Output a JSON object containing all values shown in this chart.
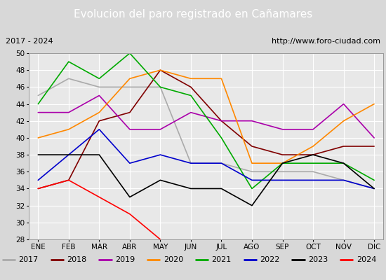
{
  "title": "Evolucion del paro registrado en Cañamares",
  "subtitle_left": "2017 - 2024",
  "subtitle_right": "http://www.foro-ciudad.com",
  "months": [
    "ENE",
    "FEB",
    "MAR",
    "ABR",
    "MAY",
    "JUN",
    "JUL",
    "AGO",
    "SEP",
    "OCT",
    "NOV",
    "DIC"
  ],
  "ylim": [
    28,
    50
  ],
  "yticks": [
    28,
    30,
    32,
    34,
    36,
    38,
    40,
    42,
    44,
    46,
    48,
    50
  ],
  "series": {
    "2017": {
      "color": "#aaaaaa",
      "data": [
        45,
        47,
        46,
        46,
        46,
        37,
        37,
        36,
        36,
        36,
        35,
        34
      ]
    },
    "2018": {
      "color": "#800000",
      "data": [
        34,
        35,
        42,
        43,
        48,
        46,
        42,
        39,
        38,
        38,
        39,
        39
      ]
    },
    "2019": {
      "color": "#aa00aa",
      "data": [
        43,
        43,
        45,
        41,
        41,
        43,
        42,
        42,
        41,
        41,
        44,
        40
      ]
    },
    "2020": {
      "color": "#ff8800",
      "data": [
        40,
        41,
        43,
        47,
        48,
        47,
        47,
        37,
        37,
        39,
        42,
        44
      ]
    },
    "2021": {
      "color": "#00aa00",
      "data": [
        44,
        49,
        47,
        50,
        46,
        45,
        40,
        34,
        37,
        37,
        37,
        35
      ]
    },
    "2022": {
      "color": "#0000cc",
      "data": [
        35,
        38,
        41,
        37,
        38,
        37,
        37,
        35,
        35,
        35,
        35,
        34
      ]
    },
    "2023": {
      "color": "#000000",
      "data": [
        38,
        38,
        38,
        33,
        35,
        34,
        34,
        32,
        37,
        38,
        37,
        34
      ]
    },
    "2024": {
      "color": "#ff0000",
      "data": [
        34,
        35,
        33,
        31,
        28,
        null,
        null,
        null,
        null,
        null,
        null,
        null
      ]
    }
  },
  "background_color": "#d8d8d8",
  "plot_bg_color": "#e8e8e8",
  "title_bg_color": "#4f81bd",
  "title_color": "#ffffff",
  "header_bg_color": "#d0d0d0",
  "legend_bg_color": "#d8d8d8",
  "grid_color": "#ffffff",
  "title_fontsize": 11,
  "header_fontsize": 8,
  "legend_fontsize": 8,
  "tick_fontsize": 7.5
}
